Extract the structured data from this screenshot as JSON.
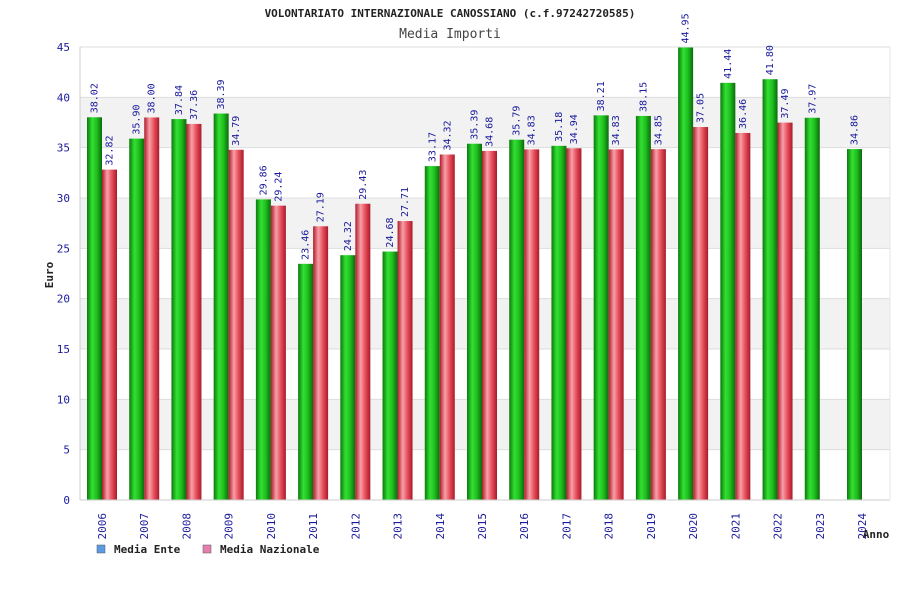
{
  "chart_data": {
    "type": "bar",
    "title": "VOLONTARIATO INTERNAZIONALE CANOSSIANO (c.f.97242720585)",
    "subtitle": "Media Importi",
    "ylabel": "Euro",
    "xlabel": "Anno",
    "ylim": [
      0,
      45
    ],
    "yticks": [
      0,
      5,
      10,
      15,
      20,
      25,
      30,
      35,
      40,
      45
    ],
    "grid": "alternating-bands",
    "legend_position": "bottom-left",
    "categories": [
      "2006",
      "2007",
      "2008",
      "2009",
      "2010",
      "2011",
      "2012",
      "2013",
      "2014",
      "2015",
      "2016",
      "2017",
      "2018",
      "2019",
      "2020",
      "2021",
      "2022",
      "2023",
      "2024"
    ],
    "series": [
      {
        "name": "Media Ente",
        "legend_color": "#5b9be6",
        "bar_color": "#1fbf1f",
        "values": [
          38.02,
          35.9,
          37.84,
          38.39,
          29.86,
          23.46,
          24.32,
          24.68,
          33.17,
          35.39,
          35.79,
          35.18,
          38.21,
          38.15,
          44.95,
          41.44,
          41.8,
          37.97,
          34.86
        ],
        "labels": [
          "38.02",
          "35.90",
          "37.84",
          "38.39",
          "29.86",
          "23.46",
          "24.32",
          "24.68",
          "33.17",
          "35.39",
          "35.79",
          "35.18",
          "38.21",
          "38.15",
          "44.95",
          "41.44",
          "41.80",
          "37.97",
          "34.86"
        ]
      },
      {
        "name": "Media Nazionale",
        "legend_color": "#e67fb0",
        "bar_color": "#e8505e",
        "values": [
          32.82,
          38.0,
          37.36,
          34.79,
          29.24,
          27.19,
          29.43,
          27.71,
          34.32,
          34.68,
          34.83,
          34.94,
          34.83,
          34.85,
          37.05,
          36.46,
          37.49,
          null,
          null
        ],
        "labels": [
          "32.82",
          "38.00",
          "37.36",
          "34.79",
          "29.24",
          "27.19",
          "29.43",
          "27.71",
          "34.32",
          "34.68",
          "34.83",
          "34.94",
          "34.83",
          "34.85",
          "37.05",
          "36.46",
          "37.49",
          null,
          null
        ]
      }
    ]
  }
}
